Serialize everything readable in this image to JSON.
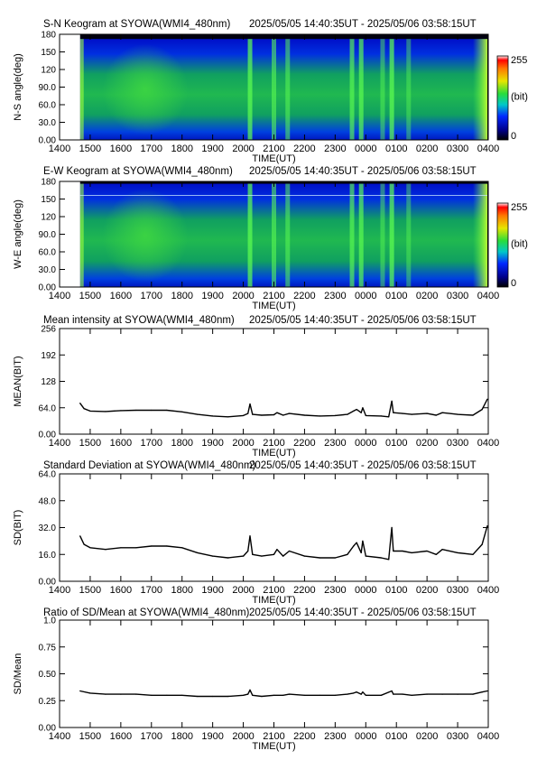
{
  "chart_data": [
    {
      "type": "heatmap",
      "title": "S-N Keogram at SYOWA(WMI4_480nm)",
      "time_range": "2025/05/05 14:40:35UT - 2025/05/06 03:58:15UT",
      "xlabel": "TIME(UT)",
      "ylabel": "N-S angle(deg)",
      "x_ticks": [
        "1400",
        "1500",
        "1600",
        "1700",
        "1800",
        "1900",
        "2000",
        "2100",
        "2200",
        "2300",
        "0000",
        "0100",
        "0200",
        "0300",
        "0400"
      ],
      "y_ticks": [
        "0.00",
        "30.0",
        "60.0",
        "90.0",
        "120",
        "150",
        "180"
      ],
      "ylim": [
        0,
        180
      ],
      "colorbar": {
        "min_label": "0",
        "max_label": "255",
        "unit_label": "(bit)",
        "range": [
          0,
          255
        ]
      },
      "data_start_hour": 14.67,
      "data_end_hour": 27.97,
      "bright_hours": [
        {
          "hour": 20.22,
          "level": 0.95
        },
        {
          "hour": 21.0,
          "level": 0.75
        },
        {
          "hour": 21.45,
          "level": 0.7
        },
        {
          "hour": 23.55,
          "level": 0.85
        },
        {
          "hour": 23.85,
          "level": 0.9
        },
        {
          "hour": 24.55,
          "level": 0.6
        },
        {
          "hour": 24.85,
          "level": 0.95
        },
        {
          "hour": 25.4,
          "level": 0.55
        }
      ]
    },
    {
      "type": "heatmap",
      "title": "E-W Keogram at SYOWA(WMI4_480nm)",
      "time_range": "2025/05/05 14:40:35UT - 2025/05/06 03:58:15UT",
      "xlabel": "TIME(UT)",
      "ylabel": "W-E angle(deg)",
      "x_ticks": [
        "1400",
        "1500",
        "1600",
        "1700",
        "1800",
        "1900",
        "2000",
        "2100",
        "2200",
        "2300",
        "0000",
        "0100",
        "0200",
        "0300",
        "0400"
      ],
      "y_ticks": [
        "0.00",
        "30.0",
        "60.0",
        "90.0",
        "120",
        "150",
        "180"
      ],
      "ylim": [
        0,
        180
      ],
      "colorbar": {
        "min_label": "0",
        "max_label": "255",
        "unit_label": "(bit)",
        "range": [
          0,
          255
        ]
      },
      "data_start_hour": 14.67,
      "data_end_hour": 27.97
    },
    {
      "type": "line",
      "title": "Mean intensity at SYOWA(WMI4_480nm)",
      "time_range": "2025/05/05 14:40:35UT - 2025/05/06 03:58:15UT",
      "xlabel": "TIME(UT)",
      "ylabel": "MEAN(BIT)",
      "x_ticks": [
        "1400",
        "1500",
        "1600",
        "1700",
        "1800",
        "1900",
        "2000",
        "2100",
        "2200",
        "2300",
        "0000",
        "0100",
        "0200",
        "0300",
        "0400"
      ],
      "y_ticks": [
        "0.00",
        "64.0",
        "128",
        "192",
        "256"
      ],
      "ylim": [
        0,
        256
      ],
      "x": [
        14.67,
        14.8,
        15.0,
        15.5,
        16.0,
        16.5,
        17.0,
        17.5,
        18.0,
        18.5,
        19.0,
        19.5,
        20.0,
        20.15,
        20.22,
        20.3,
        20.6,
        21.0,
        21.1,
        21.3,
        21.5,
        22.0,
        22.5,
        23.0,
        23.4,
        23.6,
        23.7,
        23.85,
        23.9,
        24.0,
        24.5,
        24.75,
        24.85,
        24.9,
        25.2,
        25.5,
        26.0,
        26.3,
        26.5,
        27.0,
        27.5,
        27.8,
        27.97
      ],
      "values": [
        75,
        62,
        56,
        55,
        57,
        58,
        58,
        58,
        54,
        48,
        44,
        42,
        45,
        50,
        73,
        48,
        46,
        47,
        52,
        46,
        50,
        46,
        44,
        45,
        48,
        56,
        60,
        52,
        64,
        45,
        44,
        42,
        80,
        52,
        50,
        48,
        50,
        46,
        52,
        48,
        46,
        60,
        85
      ]
    },
    {
      "type": "line",
      "title": "Standard Deviation at SYOWA(WMI4_480nm)",
      "time_range": "2025/05/05 14:40:35UT - 2025/05/06 03:58:15UT",
      "xlabel": "TIME(UT)",
      "ylabel": "SD(BIT)",
      "x_ticks": [
        "1400",
        "1500",
        "1600",
        "1700",
        "1800",
        "1900",
        "2000",
        "2100",
        "2200",
        "2300",
        "0000",
        "0100",
        "0200",
        "0300",
        "0400"
      ],
      "y_ticks": [
        "0.00",
        "16.0",
        "32.0",
        "48.0",
        "64.0"
      ],
      "ylim": [
        0,
        64
      ],
      "x": [
        14.67,
        14.8,
        15.0,
        15.5,
        16.0,
        16.5,
        17.0,
        17.5,
        18.0,
        18.5,
        19.0,
        19.5,
        20.0,
        20.15,
        20.22,
        20.3,
        20.6,
        21.0,
        21.1,
        21.3,
        21.5,
        22.0,
        22.5,
        23.0,
        23.4,
        23.6,
        23.7,
        23.85,
        23.9,
        24.0,
        24.5,
        24.75,
        24.85,
        24.9,
        25.2,
        25.5,
        26.0,
        26.3,
        26.5,
        27.0,
        27.5,
        27.8,
        27.97
      ],
      "values": [
        27,
        22,
        20,
        19,
        20,
        20,
        21,
        21,
        20,
        17,
        15,
        14,
        15,
        18,
        27,
        16,
        15,
        16,
        19,
        15,
        18,
        15,
        14,
        14,
        16,
        21,
        23,
        17,
        24,
        15,
        14,
        13,
        32,
        18,
        18,
        17,
        18,
        16,
        19,
        17,
        16,
        22,
        33
      ]
    },
    {
      "type": "line",
      "title": "Ratio of SD/Mean at SYOWA(WMI4_480nm)",
      "time_range": "2025/05/05 14:40:35UT - 2025/05/06 03:58:15UT",
      "xlabel": "TIME(UT)",
      "ylabel": "SD/Mean",
      "x_ticks": [
        "1400",
        "1500",
        "1600",
        "1700",
        "1800",
        "1900",
        "2000",
        "2100",
        "2200",
        "2300",
        "0000",
        "0100",
        "0200",
        "0300",
        "0400"
      ],
      "y_ticks": [
        "0.00",
        "0.25",
        "0.50",
        "0.75",
        "1.0"
      ],
      "ylim": [
        0,
        1
      ],
      "x": [
        14.67,
        15.0,
        15.5,
        16.0,
        16.5,
        17.0,
        17.5,
        18.0,
        18.5,
        19.0,
        19.5,
        20.0,
        20.15,
        20.22,
        20.3,
        20.6,
        21.0,
        21.3,
        21.5,
        22.0,
        22.5,
        23.0,
        23.4,
        23.6,
        23.7,
        23.85,
        23.9,
        24.0,
        24.5,
        24.85,
        24.9,
        25.2,
        25.5,
        26.0,
        26.5,
        27.0,
        27.5,
        27.8,
        27.97
      ],
      "values": [
        0.34,
        0.32,
        0.31,
        0.31,
        0.31,
        0.3,
        0.3,
        0.3,
        0.29,
        0.29,
        0.29,
        0.3,
        0.31,
        0.35,
        0.3,
        0.29,
        0.3,
        0.3,
        0.31,
        0.3,
        0.3,
        0.3,
        0.31,
        0.32,
        0.33,
        0.31,
        0.33,
        0.3,
        0.3,
        0.34,
        0.31,
        0.31,
        0.3,
        0.31,
        0.31,
        0.31,
        0.31,
        0.33,
        0.34
      ]
    }
  ]
}
